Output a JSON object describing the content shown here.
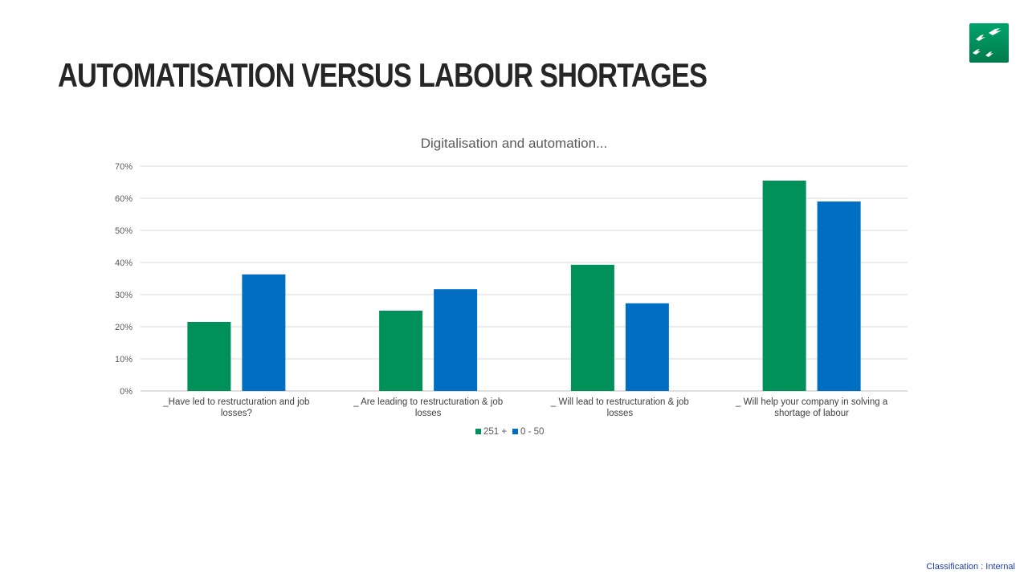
{
  "slide": {
    "title": "AUTOMATISATION VERSUS LABOUR SHORTAGES",
    "classification": "Classification : Internal"
  },
  "logo": {
    "icon": "bnp-stars-logo-icon",
    "color": "#00915A"
  },
  "chart_data": {
    "type": "bar",
    "title": "Digitalisation and automation...",
    "xlabel": "",
    "ylabel": "",
    "categories": [
      "_Have led to restructuration and job losses?",
      "_ Are leading to restructuration & job losses",
      "_ Will lead to restructuration & job losses",
      "_ Will help your company in solving a shortage of labour"
    ],
    "series": [
      {
        "name": "251 +",
        "color": "#00915A",
        "values": [
          21.5,
          25,
          39.3,
          65.5
        ]
      },
      {
        "name": "0 - 50",
        "color": "#006FC3",
        "values": [
          36.3,
          31.7,
          27.3,
          59
        ]
      }
    ],
    "ylim": [
      0,
      70
    ],
    "yticks": [
      "0%",
      "10%",
      "20%",
      "30%",
      "40%",
      "50%",
      "60%",
      "70%"
    ],
    "grid": true,
    "legend": "bottom-center"
  }
}
